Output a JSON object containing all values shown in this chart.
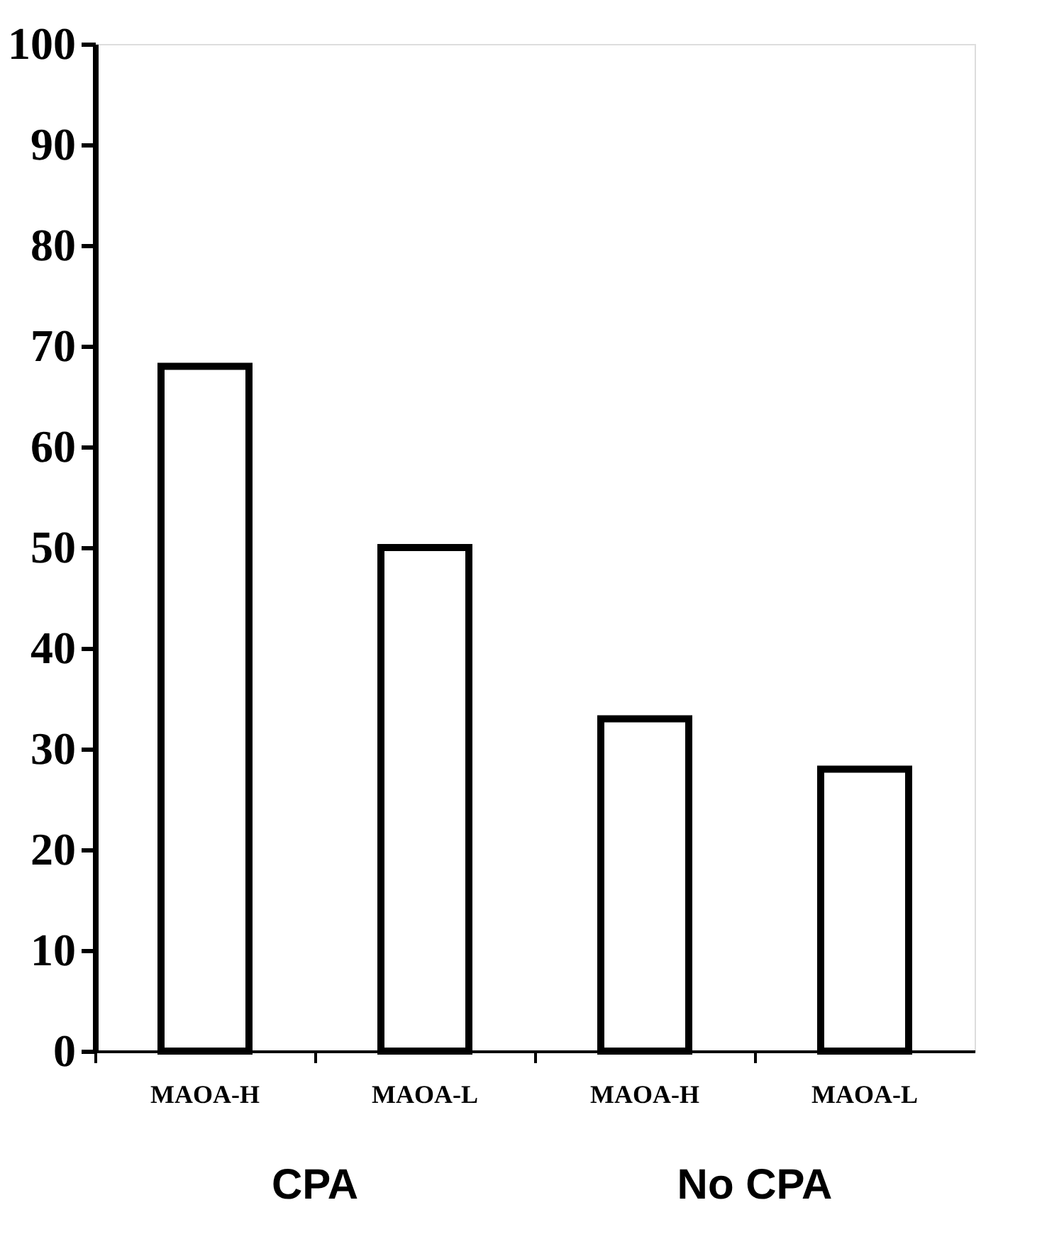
{
  "chart_data": {
    "type": "bar",
    "categories": [
      "MAOA-H",
      "MAOA-L",
      "MAOA-H",
      "MAOA-L"
    ],
    "values": [
      68,
      50,
      33,
      28
    ],
    "color": "#ffffff",
    "ylim": [
      0,
      100
    ],
    "yticks": [
      0,
      10,
      20,
      30,
      40,
      50,
      60,
      70,
      80,
      90,
      100
    ],
    "grid": false,
    "annotations": [
      "CPA",
      "No CPA"
    ]
  }
}
